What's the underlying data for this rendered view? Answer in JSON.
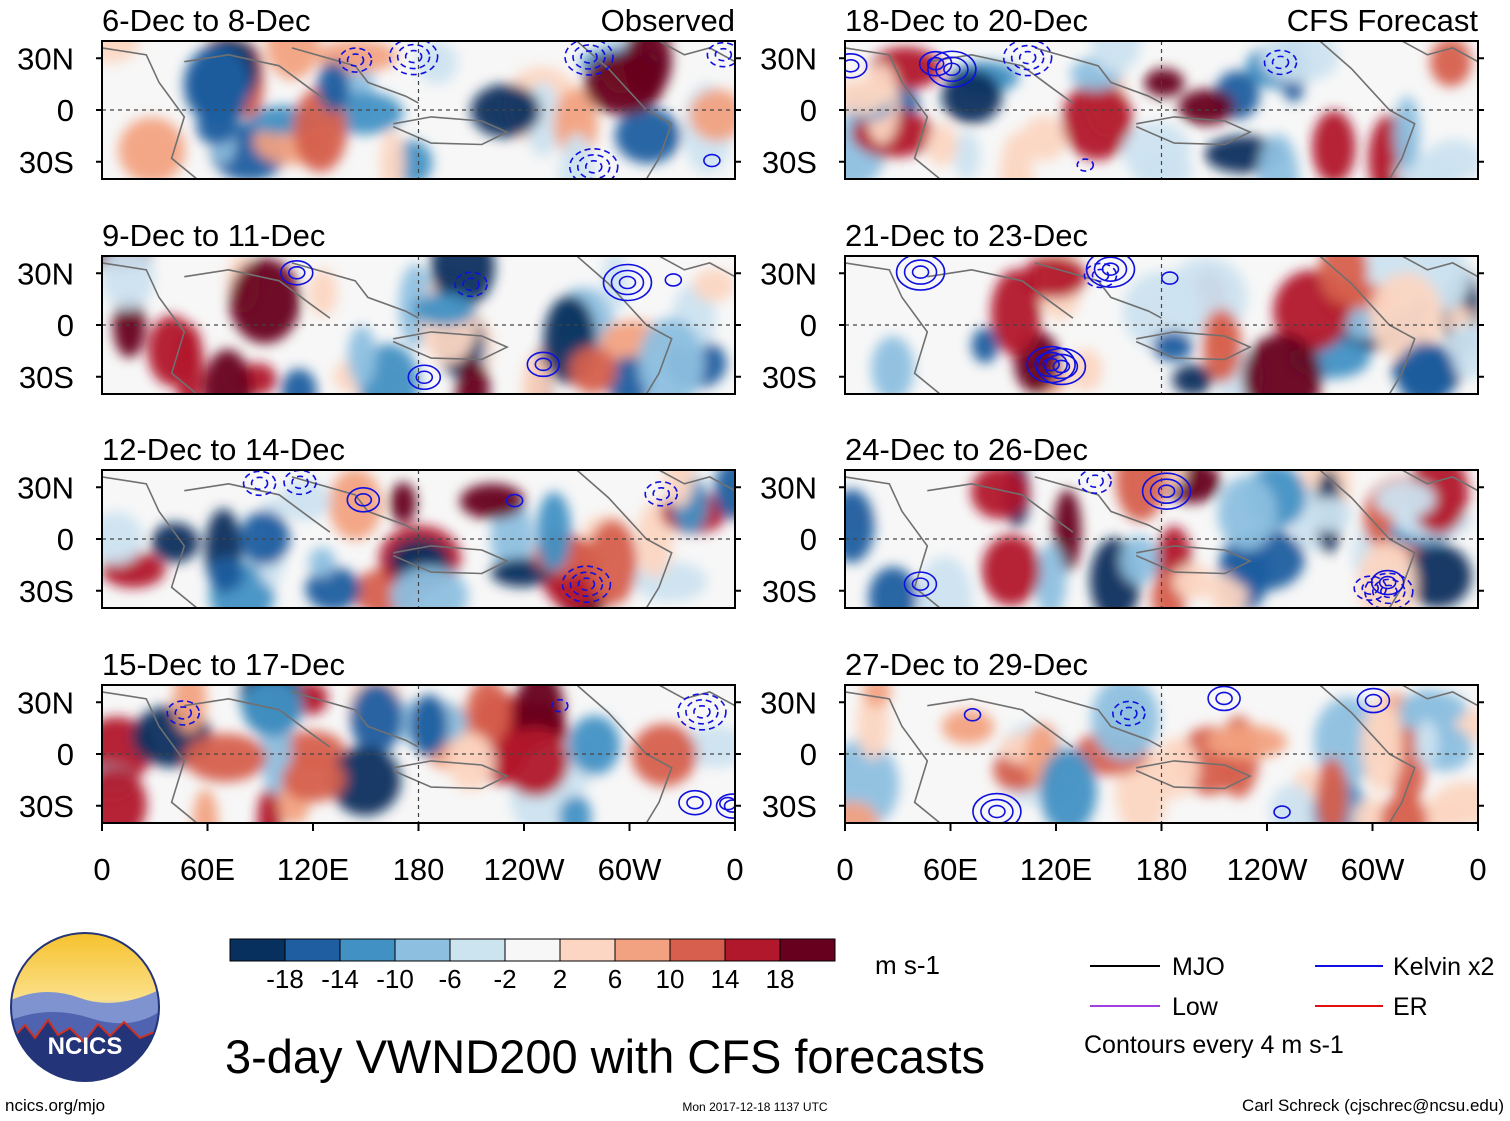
{
  "chart_data": {
    "type": "heatmap",
    "title": "3-day VWND200 with CFS forecasts",
    "variable": "VWND200",
    "units": "m s-1",
    "x_ticks": [
      "0",
      "60E",
      "120E",
      "180",
      "120W",
      "60W",
      "0"
    ],
    "y_ticks": [
      "30N",
      "0",
      "30S"
    ],
    "x_range": [
      0,
      360
    ],
    "y_range": [
      -40,
      40
    ],
    "columns": [
      {
        "heading": "Observed",
        "periods": [
          "6-Dec to 8-Dec",
          "9-Dec to 11-Dec",
          "12-Dec to 14-Dec",
          "15-Dec to 17-Dec"
        ]
      },
      {
        "heading": "CFS Forecast",
        "periods": [
          "18-Dec to 20-Dec",
          "21-Dec to 23-Dec",
          "24-Dec to 26-Dec",
          "27-Dec to 29-Dec"
        ]
      }
    ],
    "colorbar": {
      "labels": [
        "-18",
        "-14",
        "-10",
        "-6",
        "-2",
        "2",
        "6",
        "10",
        "14",
        "18"
      ],
      "colors": [
        "#08305e",
        "#1f5ea0",
        "#4291c4",
        "#8dc0e0",
        "#cce3f0",
        "#f7f7f7",
        "#fcd6c2",
        "#f2a281",
        "#d6604d",
        "#b2182b",
        "#67001f"
      ]
    },
    "contour_legend": [
      {
        "name": "MJO",
        "color": "#000000"
      },
      {
        "name": "Kelvin x2",
        "color": "#1010e0"
      },
      {
        "name": "Low",
        "color": "#a040e0"
      },
      {
        "name": "ER",
        "color": "#e01010"
      }
    ],
    "contour_note": "Contours every 4 m s-1"
  },
  "footer": {
    "logo_text": "NCICS",
    "site": "ncics.org/mjo",
    "timestamp": "Mon 2017-12-18 1137 UTC",
    "author": "Carl Schreck (cjschrec@ncsu.edu)"
  }
}
